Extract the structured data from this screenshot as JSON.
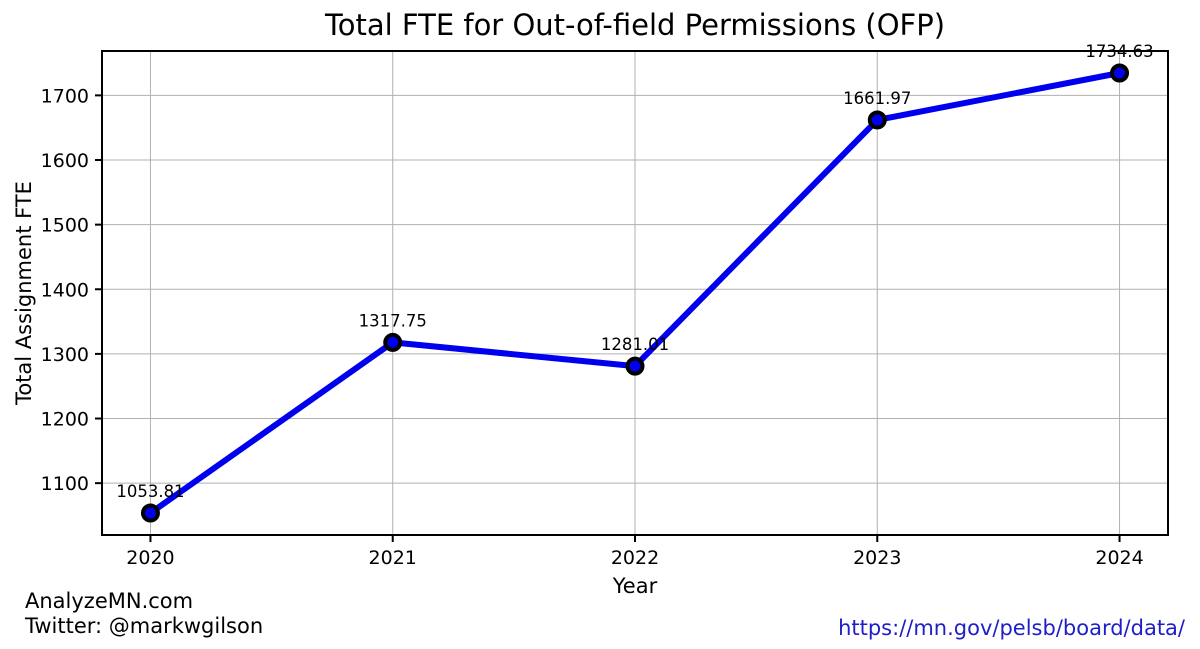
{
  "title": "Total FTE for Out-of-field Permissions (OFP)",
  "footer": {
    "site": "AnalyzeMN.com",
    "twitter": "Twitter: @markwgilson",
    "url": "https://mn.gov/pelsb/board/data/"
  },
  "colors": {
    "line": "#0000ee",
    "marker_fill": "#0000ee",
    "marker_edge": "#000000",
    "grid": "#b0b0b0",
    "axis": "#000000",
    "url_link": "#1e1ec8",
    "background": "#ffffff"
  },
  "chart_data": {
    "type": "line",
    "title": "Total FTE for Out-of-field Permissions (OFP)",
    "xlabel": "Year",
    "ylabel": "Total Assignment FTE",
    "x": [
      2020,
      2021,
      2022,
      2023,
      2024
    ],
    "values": [
      1053.81,
      1317.75,
      1281.01,
      1661.97,
      1734.63
    ],
    "point_labels": [
      "1053.81",
      "1317.75",
      "1281.01",
      "1661.97",
      "1734.63"
    ],
    "xtick_labels": [
      "2020",
      "2021",
      "2022",
      "2023",
      "2024"
    ],
    "xticks": [
      2020,
      2021,
      2022,
      2023,
      2024
    ],
    "yticks": [
      1100,
      1200,
      1300,
      1400,
      1500,
      1600,
      1700
    ],
    "ytick_labels": [
      "1100",
      "1200",
      "1300",
      "1400",
      "1500",
      "1600",
      "1700"
    ],
    "xlim": [
      2019.8,
      2024.2
    ],
    "ylim": [
      1019.77,
      1768.67
    ],
    "grid": true,
    "legend_position": "none",
    "line_width": 6,
    "marker": "circle"
  }
}
